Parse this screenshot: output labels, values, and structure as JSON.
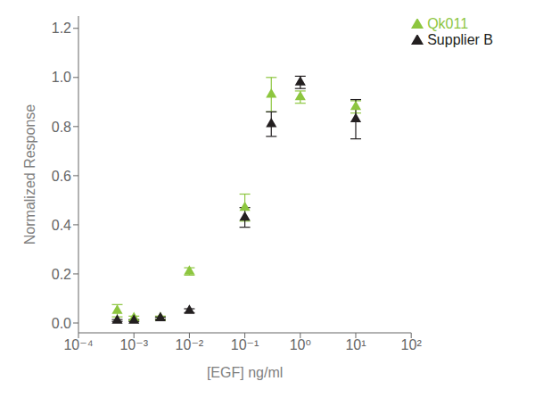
{
  "chart_data": {
    "type": "scatter",
    "x_label": "[EGF] ng/ml",
    "y_label": "Normalized Response",
    "log": "x",
    "grid": false,
    "legend": "upper right",
    "xlim": [
      0.0001,
      100
    ],
    "xticks": [
      {
        "value": 0.0001,
        "label": "10⁻⁴"
      },
      {
        "value": 0.001,
        "label": "10⁻³"
      },
      {
        "value": 0.01,
        "label": "10⁻²"
      },
      {
        "value": 0.1,
        "label": "10⁻¹"
      },
      {
        "value": 1,
        "label": "10⁰"
      },
      {
        "value": 10,
        "label": "10¹"
      },
      {
        "value": 100,
        "label": "10²"
      }
    ],
    "ylim": [
      -0.04,
      1.25
    ],
    "yticks": [
      {
        "value": 0,
        "label": "0.0"
      },
      0.2,
      0.4,
      0.6,
      0.8,
      {
        "value": 1,
        "label": "1.0"
      },
      1.2
    ],
    "x": [
      0.0005,
      0.001,
      0.003,
      0.01,
      0.1,
      0.3,
      1.0,
      10.0
    ],
    "series": [
      {
        "name": "Qk011",
        "color": "#8dc63f",
        "marker": "triangle",
        "values": [
          0.05,
          0.02,
          0.02,
          0.21,
          0.47,
          0.93,
          0.92,
          0.88
        ],
        "error": [
          0.025,
          0.008,
          0.008,
          0.015,
          0.055,
          0.07,
          0.025,
          0.025
        ]
      },
      {
        "name": "Supplier B",
        "color": "#231f20",
        "marker": "triangle",
        "values": [
          0.01,
          0.01,
          0.02,
          0.05,
          0.43,
          0.81,
          0.98,
          0.83
        ],
        "error": [
          0.004,
          0.004,
          0.004,
          0.008,
          0.04,
          0.05,
          0.025,
          0.08
        ]
      }
    ]
  }
}
